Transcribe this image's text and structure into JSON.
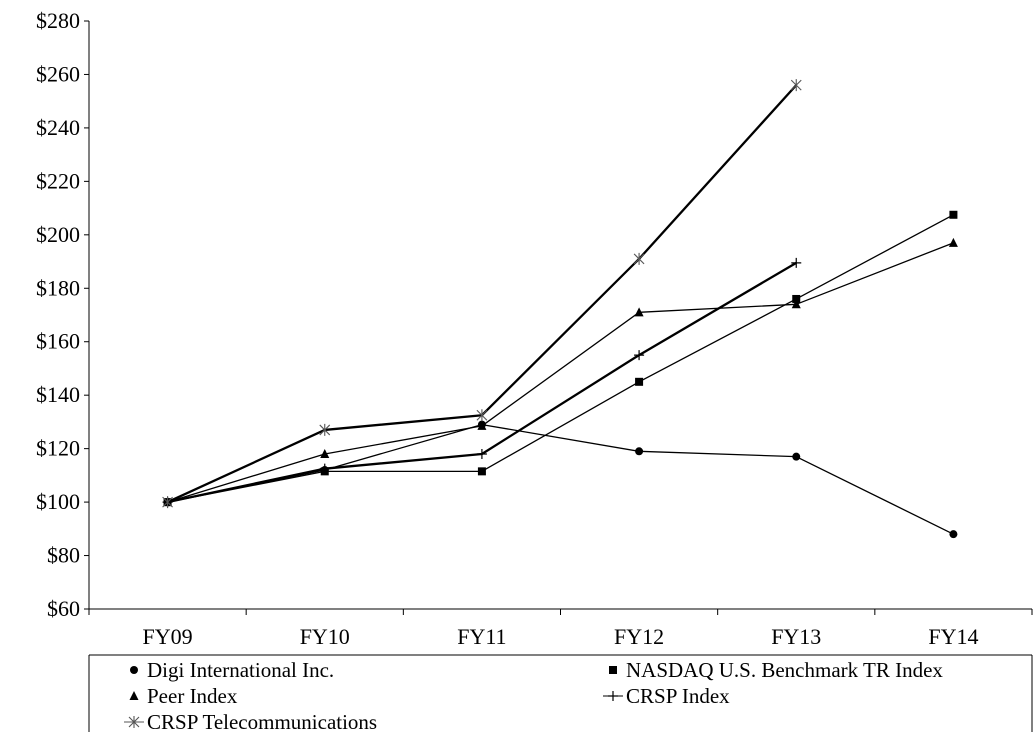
{
  "chart_data": {
    "type": "line",
    "title": "",
    "xlabel": "",
    "ylabel": "",
    "categories": [
      "FY09",
      "FY10",
      "FY11",
      "FY12",
      "FY13",
      "FY14"
    ],
    "ylim": [
      60,
      280
    ],
    "y_ticks": [
      60,
      80,
      100,
      120,
      140,
      160,
      180,
      200,
      220,
      240,
      260,
      280
    ],
    "y_tick_labels": [
      "$60",
      "$80",
      "$100",
      "$120",
      "$140",
      "$160",
      "$180",
      "$200",
      "$220",
      "$240",
      "$260",
      "$280"
    ],
    "grid": false,
    "legend_position": "bottom",
    "series": [
      {
        "name": "Digi International Inc.",
        "marker": "circle",
        "line_weight": "thin",
        "values": [
          100,
          112,
          129,
          119,
          117,
          88
        ]
      },
      {
        "name": "NASDAQ U.S. Benchmark TR Index",
        "marker": "square",
        "line_weight": "thin",
        "values": [
          100,
          111.5,
          111.5,
          145,
          176,
          207.5
        ]
      },
      {
        "name": "Peer Index",
        "marker": "triangle",
        "line_weight": "thin",
        "values": [
          100,
          118,
          128.5,
          171,
          174,
          197
        ]
      },
      {
        "name": "CRSP Index",
        "marker": "plus",
        "line_weight": "thick",
        "values": [
          100,
          112.5,
          118,
          155,
          189.5,
          null
        ]
      },
      {
        "name": "CRSP Telecommunications",
        "marker": "asterisk",
        "line_weight": "thick",
        "values": [
          100,
          127,
          132.5,
          191,
          256,
          null
        ]
      }
    ]
  }
}
